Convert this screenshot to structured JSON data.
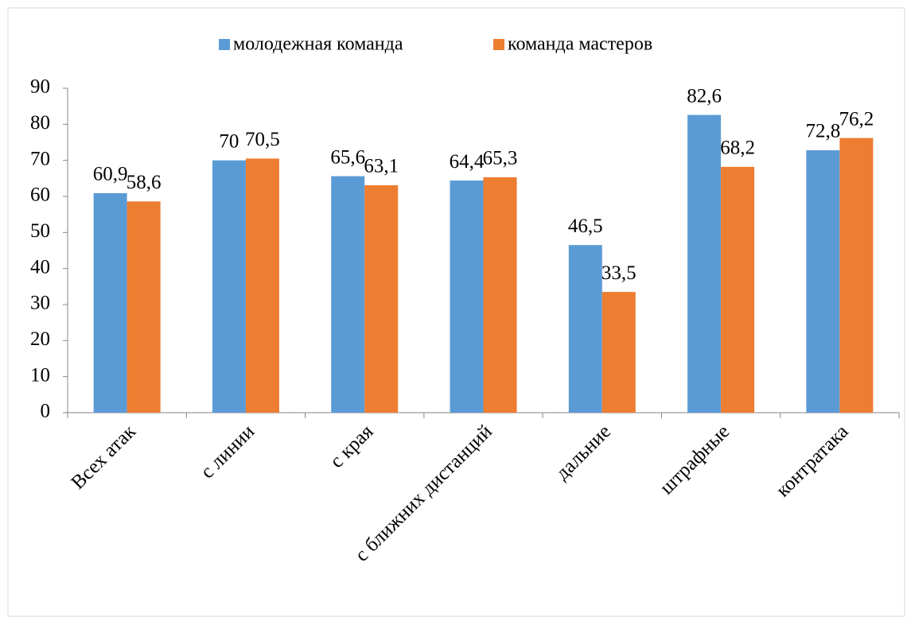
{
  "chart_data": {
    "type": "bar",
    "categories": [
      "Всех атак",
      "с линии",
      "с края",
      "с ближних дистанций",
      "дальние",
      "штрафные",
      "контратака"
    ],
    "series": [
      {
        "name": "молодежная команда",
        "color": "#5b9bd5",
        "values": [
          60.9,
          70,
          65.6,
          64.4,
          46.5,
          82.6,
          72.8
        ],
        "value_labels": [
          "60,9",
          "70",
          "65,6",
          "64,4",
          "46,5",
          "82,6",
          "72,8"
        ]
      },
      {
        "name": "команда мастеров",
        "color": "#ed7d31",
        "values": [
          58.6,
          70.5,
          63.1,
          65.3,
          33.5,
          68.2,
          76.2
        ],
        "value_labels": [
          "58,6",
          "70,5",
          "63,1",
          "65,3",
          "33,5",
          "68,2",
          "76,2"
        ]
      }
    ],
    "ylim": [
      0,
      90
    ],
    "yticks": [
      0,
      10,
      20,
      30,
      40,
      50,
      60,
      70,
      80,
      90
    ],
    "grid": false,
    "legend": "top"
  }
}
